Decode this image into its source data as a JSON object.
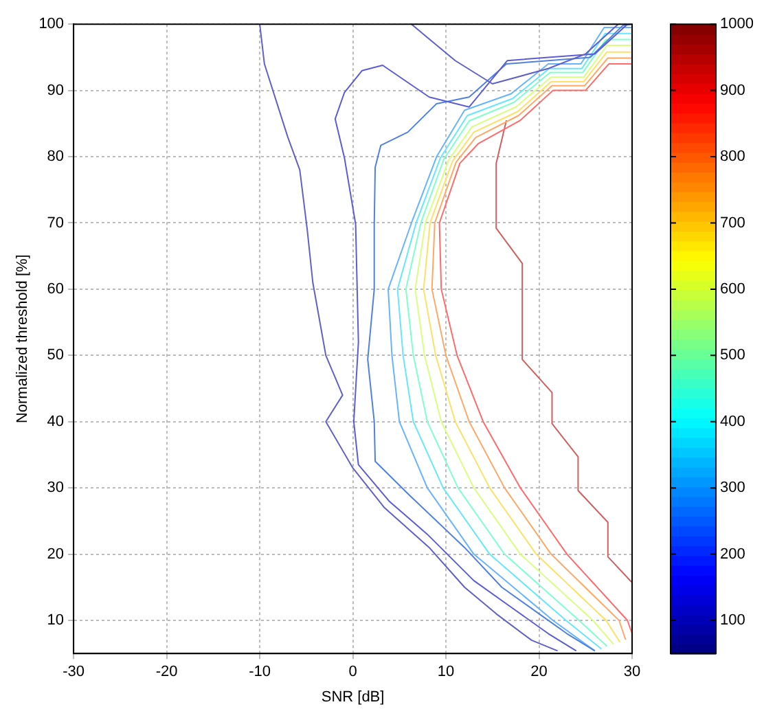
{
  "chart_data": {
    "type": "line",
    "xlabel": "SNR [dB]",
    "ylabel": "Normalized threshold [%]",
    "xlim": [
      -30,
      30
    ],
    "xticks": [
      -30,
      -20,
      -10,
      0,
      10,
      20,
      30
    ],
    "ylim": [
      5,
      100
    ],
    "yticks": [
      10,
      20,
      30,
      40,
      50,
      60,
      70,
      80,
      90,
      100
    ],
    "grid": true,
    "marker": "none",
    "line_style": "solid",
    "legend": false,
    "clim": [
      50,
      1000
    ],
    "cticks": [
      100,
      200,
      300,
      400,
      500,
      600,
      700,
      800,
      900,
      1000
    ],
    "series": [
      {
        "color": "#6060c8",
        "x": [
          -10,
          -9.5,
          -7,
          -5.7,
          -4.9,
          -4.3,
          -2.9,
          -1.1,
          -2.9,
          0,
          3.4,
          8.2,
          12,
          15.4,
          19.2,
          22
        ],
        "values": [
          100,
          94,
          83,
          78,
          69,
          61,
          50,
          44,
          40,
          33,
          27,
          21,
          15,
          11,
          7,
          5.4
        ]
      },
      {
        "color": "#6060c8",
        "x": [
          6.3,
          8,
          11,
          15,
          21,
          25,
          28.5
        ],
        "values": [
          100,
          98,
          94.5,
          91,
          93.3,
          95.5,
          100
        ]
      },
      {
        "color": "#5c5cd6",
        "x": [
          29.5,
          26,
          21,
          16.6,
          12.5,
          8.2,
          3.2,
          1,
          -0.9,
          -1.9,
          -0.9,
          0.3,
          0.6,
          0.1,
          0.6,
          3.9,
          8,
          13,
          17,
          21,
          24
        ],
        "values": [
          100,
          95.5,
          95,
          94.5,
          87.5,
          89,
          93.8,
          93,
          89.7,
          85.7,
          79.8,
          69.8,
          52,
          40,
          33.5,
          28,
          23,
          16,
          12,
          8,
          5.4
        ]
      },
      {
        "color": "#5080e0",
        "x": [
          30,
          29,
          25.5,
          21,
          16.5,
          12.5,
          9,
          5.9,
          3,
          2.4,
          2.3,
          2.3,
          1.6,
          2.3,
          2.4,
          6,
          12,
          16,
          20,
          23,
          26
        ],
        "values": [
          100,
          99.8,
          95,
          94.5,
          94,
          89,
          88,
          83.7,
          81.7,
          78.4,
          69.8,
          60,
          49.4,
          40,
          34,
          29,
          21,
          15,
          11,
          8,
          5.4
        ]
      },
      {
        "color": "#66b3ff",
        "x": [
          30,
          27,
          24.5,
          21,
          17,
          12,
          9,
          6.3,
          3.8,
          4.2,
          5,
          8,
          13,
          21.5,
          26
        ],
        "values": [
          99.5,
          99.5,
          94,
          94,
          89.5,
          87,
          80,
          70,
          60,
          50,
          40,
          30,
          20,
          10,
          5.4
        ]
      },
      {
        "color": "#66e6ff",
        "x": [
          30,
          27.1,
          24.6,
          21.1,
          17.2,
          12.3,
          9.4,
          6.8,
          4.8,
          5.4,
          6.5,
          9.7,
          14.7,
          22.9,
          26.7
        ],
        "values": [
          98.6,
          98.6,
          93.3,
          93.3,
          88.8,
          86.2,
          79.8,
          70,
          60,
          50,
          40,
          30,
          20,
          10,
          5.7
        ]
      },
      {
        "color": "#80ffcc",
        "x": [
          30,
          27.2,
          24.7,
          21.2,
          17.3,
          12.5,
          9.8,
          7.3,
          5.7,
          6.5,
          8,
          11.3,
          16.3,
          24.3,
          27.3
        ],
        "values": [
          97.7,
          97.7,
          92.7,
          92.7,
          88.2,
          85.4,
          79.7,
          70,
          60,
          50,
          40,
          30,
          20,
          10,
          6.1
        ]
      },
      {
        "color": "#d8ff80",
        "x": [
          30,
          27.3,
          24.8,
          21.3,
          17.5,
          12.8,
          10.3,
          7.8,
          6.7,
          7.7,
          9.5,
          13,
          18,
          25.8,
          28
        ],
        "values": [
          96.8,
          96.8,
          92,
          92,
          87.5,
          84.5,
          79.5,
          70,
          60,
          50,
          40,
          30,
          20,
          10,
          6.4
        ]
      },
      {
        "color": "#ffe066",
        "x": [
          30,
          27.3,
          24.8,
          21.3,
          17.7,
          13,
          10.7,
          8.3,
          7.6,
          8.9,
          11,
          14.7,
          19.7,
          27.2,
          28.7
        ],
        "values": [
          95.8,
          95.8,
          91.3,
          91.3,
          86.8,
          83.7,
          79.3,
          70,
          60,
          50,
          40,
          30,
          20,
          10,
          6.7
        ]
      },
      {
        "color": "#ffa866",
        "x": [
          30,
          27.4,
          24.9,
          21.4,
          17.8,
          13.2,
          11.1,
          8.8,
          8.5,
          10,
          12.5,
          16.3,
          21.3,
          28.6,
          29.3
        ],
        "values": [
          94.9,
          94.9,
          90.7,
          90.7,
          86.2,
          82.9,
          79.2,
          70,
          60,
          50,
          40,
          30,
          20,
          10,
          7.1
        ]
      },
      {
        "color": "#ff6a6a",
        "x": [
          30,
          27.5,
          25,
          21.5,
          18,
          13.5,
          11.5,
          9.3,
          9.5,
          11.2,
          14,
          18,
          23,
          29.5,
          30
        ],
        "values": [
          94,
          94,
          90,
          90,
          85.5,
          82,
          79,
          70,
          60,
          50,
          40,
          30,
          20,
          10,
          8
        ]
      },
      {
        "color": "#d06060",
        "x": [
          16.5,
          15.4,
          15.4,
          18.2,
          18.2,
          21.4,
          21.4,
          24.2,
          24.2,
          27.4,
          27.4,
          30
        ],
        "values": [
          85.5,
          79,
          69.2,
          63.9,
          49.4,
          44.4,
          39.7,
          34.7,
          29.6,
          24.8,
          19.6,
          15.7
        ]
      }
    ]
  }
}
